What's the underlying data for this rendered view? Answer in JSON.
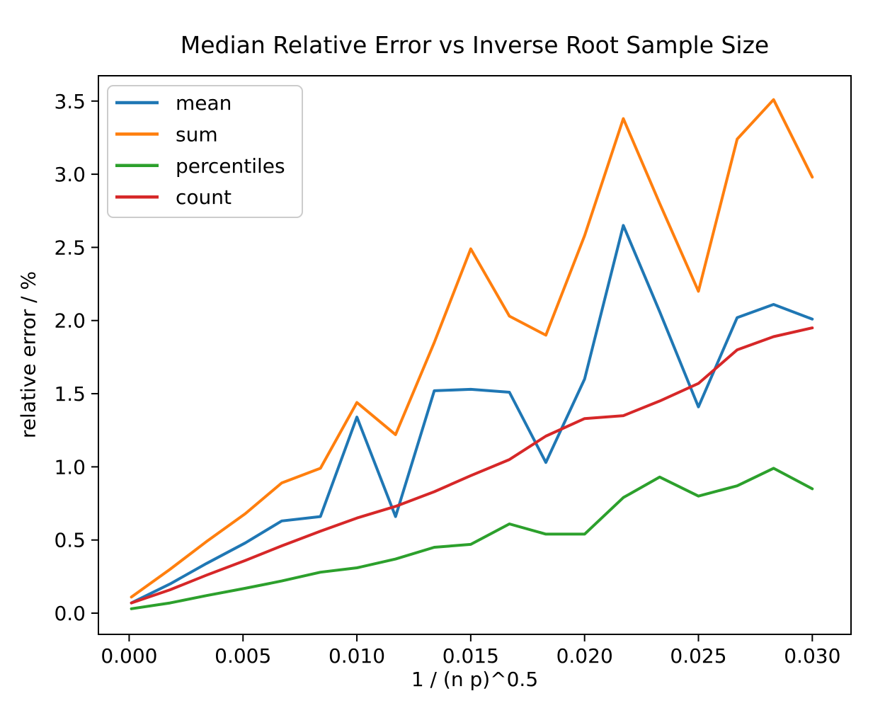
{
  "chart_data": {
    "type": "line",
    "title": "Median Relative Error vs Inverse Root Sample Size",
    "xlabel": "1 / (n p)^0.5",
    "ylabel": "relative error / %",
    "grid": false,
    "legend": {
      "position": "upper left"
    },
    "xlim": [
      -0.00135,
      0.0317
    ],
    "ylim": [
      -0.145,
      3.673
    ],
    "xticks": {
      "values": [
        0.0,
        0.005,
        0.01,
        0.015,
        0.02,
        0.025,
        0.03
      ],
      "labels": [
        "0.000",
        "0.005",
        "0.010",
        "0.015",
        "0.020",
        "0.025",
        "0.030"
      ]
    },
    "yticks": {
      "values": [
        0.0,
        0.5,
        1.0,
        1.5,
        2.0,
        2.5,
        3.0,
        3.5
      ],
      "labels": [
        "0.0",
        "0.5",
        "1.0",
        "1.5",
        "2.0",
        "2.5",
        "3.0",
        "3.5"
      ]
    },
    "x": [
      0.0001,
      0.0018,
      0.0034,
      0.0051,
      0.0067,
      0.0084,
      0.01,
      0.0117,
      0.0134,
      0.015,
      0.0167,
      0.0183,
      0.02,
      0.0217,
      0.0233,
      0.025,
      0.0267,
      0.0283,
      0.03
    ],
    "series": [
      {
        "name": "mean",
        "color": "#1f77b4",
        "values": [
          0.07,
          0.2,
          0.34,
          0.48,
          0.63,
          0.66,
          1.34,
          0.66,
          1.52,
          1.53,
          1.51,
          1.03,
          1.6,
          2.65,
          2.06,
          1.41,
          2.02,
          2.11,
          2.01
        ]
      },
      {
        "name": "sum",
        "color": "#ff7f0e",
        "values": [
          0.11,
          0.3,
          0.49,
          0.68,
          0.89,
          0.99,
          1.44,
          1.22,
          1.85,
          2.49,
          2.03,
          1.9,
          2.58,
          3.38,
          2.8,
          2.2,
          3.24,
          3.51,
          2.98
        ]
      },
      {
        "name": "percentiles",
        "color": "#2ca02c",
        "values": [
          0.03,
          0.07,
          0.12,
          0.17,
          0.22,
          0.28,
          0.31,
          0.37,
          0.45,
          0.47,
          0.61,
          0.54,
          0.54,
          0.79,
          0.93,
          0.8,
          0.87,
          0.99,
          0.85
        ]
      },
      {
        "name": "count",
        "color": "#d62728",
        "values": [
          0.07,
          0.16,
          0.26,
          0.36,
          0.46,
          0.56,
          0.65,
          0.73,
          0.83,
          0.94,
          1.05,
          1.21,
          1.33,
          1.35,
          1.45,
          1.57,
          1.8,
          1.89,
          1.95
        ]
      }
    ]
  }
}
